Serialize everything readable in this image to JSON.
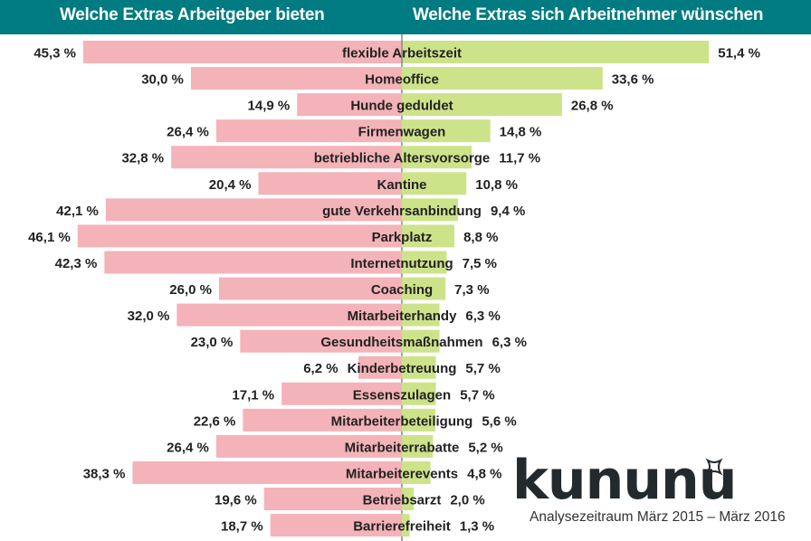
{
  "chart_data": {
    "type": "bar",
    "orientation": "horizontal-butterfly",
    "left_title": "Welche Extras Arbeitgeber bieten",
    "right_title": "Welche Extras sich Arbeitnehmer wünschen",
    "categories": [
      "flexible Arbeitszeit",
      "Homeoffice",
      "Hunde geduldet",
      "Firmenwagen",
      "betriebliche Altersvorsorge",
      "Kantine",
      "gute Verkehrsanbindung",
      "Parkplatz",
      "Internetnutzung",
      "Coaching",
      "Mitarbeiterhandy",
      "Gesundheitsmaßnahmen",
      "Kinderbetreuung",
      "Essenszulagen",
      "Mitarbeiterbeteiligung",
      "Mitarbeiterrabatte",
      "Mitarbeiterevents",
      "Betriebsarzt",
      "Barrierefreiheit"
    ],
    "series": [
      {
        "name": "Welche Extras Arbeitgeber bieten",
        "side": "left",
        "color": "#f4b3b8",
        "values": [
          45.3,
          30.0,
          14.9,
          26.4,
          32.8,
          20.4,
          42.1,
          46.1,
          42.3,
          26.0,
          32.0,
          23.0,
          6.2,
          17.1,
          22.6,
          26.4,
          38.3,
          19.6,
          18.7
        ],
        "labels": [
          "45,3 %",
          "30,0 %",
          "14,9 %",
          "26,4 %",
          "32,8 %",
          "20,4 %",
          "42,1 %",
          "46,1 %",
          "42,3 %",
          "26,0 %",
          "32,0 %",
          "23,0 %",
          "6,2 %",
          "17,1 %",
          "22,6 %",
          "26,4 %",
          "38,3 %",
          "19,6 %",
          "18,7 %"
        ]
      },
      {
        "name": "Welche Extras sich Arbeitnehmer wünschen",
        "side": "right",
        "color": "#cde38a",
        "values": [
          51.4,
          33.6,
          26.8,
          14.8,
          11.7,
          10.8,
          9.4,
          8.8,
          7.5,
          7.3,
          6.3,
          6.3,
          5.7,
          5.7,
          5.6,
          5.2,
          4.8,
          2.0,
          1.3
        ],
        "labels": [
          "51,4 %",
          "33,6 %",
          "26,8 %",
          "14,8 %",
          "11,7 %",
          "10,8 %",
          "9,4 %",
          "8,8 %",
          "7,5 %",
          "7,3 %",
          "6,3 %",
          "6,3 %",
          "5,7 %",
          "5,7 %",
          "5,6 %",
          "5,2 %",
          "4,8 %",
          "2,0 %",
          "1,3 %"
        ]
      }
    ],
    "unit": "%",
    "header_color": "#007b82"
  },
  "brand": {
    "logo": "kununu",
    "period": "Analysezeitraum März 2015 – März 2016"
  }
}
